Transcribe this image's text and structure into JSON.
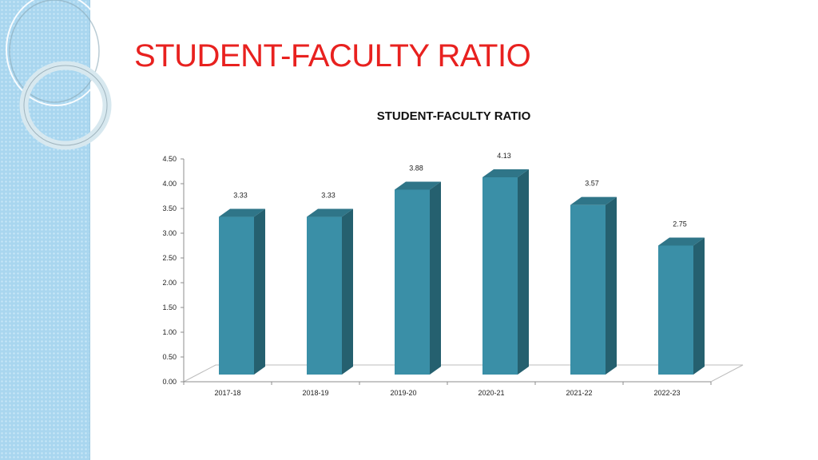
{
  "slide": {
    "title": "STUDENT-FACULTY RATIO",
    "colors": {
      "title": "#e8211f",
      "panel": "#a9d6ef"
    }
  },
  "chart_data": {
    "type": "bar",
    "title": "STUDENT-FACULTY RATIO",
    "categories": [
      "2017-18",
      "2018-19",
      "2019-20",
      "2020-21",
      "2021-22",
      "2022-23"
    ],
    "values": [
      3.33,
      3.33,
      3.88,
      4.13,
      3.57,
      2.75
    ],
    "value_labels": [
      "3.33",
      "3.33",
      "3.88",
      "4.13",
      "3.57",
      "2.75"
    ],
    "ylim": [
      0,
      4.5
    ],
    "yticks": [
      "0.00",
      "0.50",
      "1.00",
      "1.50",
      "2.00",
      "2.50",
      "3.00",
      "3.50",
      "4.00",
      "4.50"
    ],
    "xlabel": "",
    "ylabel": "",
    "style": "3d-column",
    "colors": {
      "front": "#3a8fa7",
      "side": "#25606f",
      "top": "#2f7588"
    },
    "grid": false,
    "legend": "none"
  }
}
